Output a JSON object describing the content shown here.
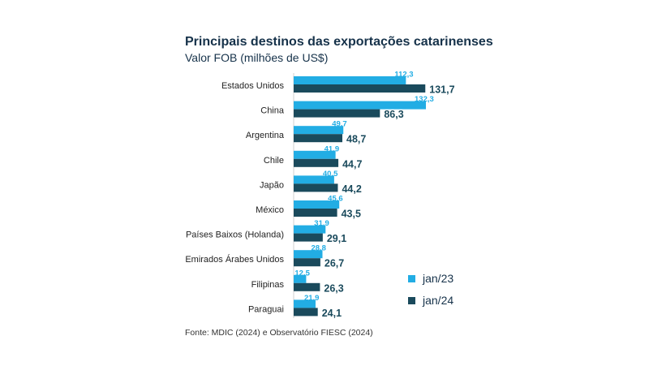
{
  "colors": {
    "series1": "#22ade4",
    "series2": "#1a4a5c",
    "text": "#16324a"
  },
  "chart_data": {
    "type": "bar",
    "orientation": "horizontal",
    "title": "Principais destinos das exportações catarinenses",
    "subtitle": "Valor FOB (milhões de US$)",
    "categories": [
      "Estados Unidos",
      "China",
      "Argentina",
      "Chile",
      "Japão",
      "México",
      "Países Baixos (Holanda)",
      "Emirados Árabes Unidos",
      "Filipinas",
      "Paraguai"
    ],
    "series": [
      {
        "name": "jan/23",
        "values": [
          112.3,
          132.3,
          49.7,
          41.9,
          40.5,
          45.6,
          31.9,
          28.8,
          12.5,
          21.9
        ],
        "labels": [
          "112,3",
          "132,3",
          "49,7",
          "41,9",
          "40,5",
          "45,6",
          "31,9",
          "28,8",
          "12,5",
          "21,9"
        ]
      },
      {
        "name": "jan/24",
        "values": [
          131.7,
          86.3,
          48.7,
          44.7,
          44.2,
          43.5,
          29.1,
          26.7,
          26.3,
          24.1
        ],
        "labels": [
          "131,7",
          "86,3",
          "48,7",
          "44,7",
          "44,2",
          "43,5",
          "29,1",
          "26,7",
          "26,3",
          "24,1"
        ]
      }
    ],
    "xlim": [
      0,
      140
    ],
    "grid": false,
    "legend": "bottom-right",
    "source": "Fonte: MDIC (2024) e Observatório FIESC (2024)"
  }
}
